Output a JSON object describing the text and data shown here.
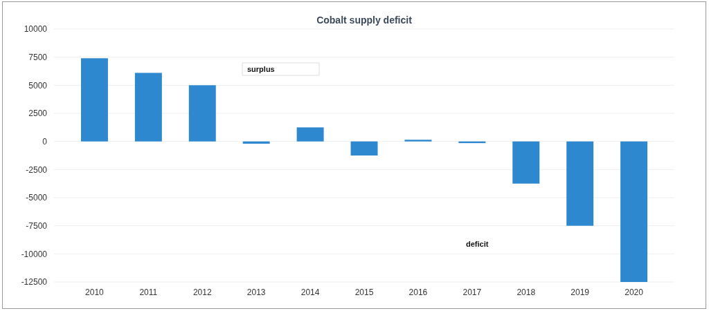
{
  "chart_data": {
    "type": "bar",
    "title": "Cobalt supply deficit",
    "categories": [
      "2010",
      "2011",
      "2012",
      "2013",
      "2014",
      "2015",
      "2016",
      "2017",
      "2018",
      "2019",
      "2020"
    ],
    "values": [
      7400,
      6100,
      5000,
      -200,
      1250,
      -1250,
      150,
      -150,
      -3750,
      -7500,
      -12500
    ],
    "color": "#2e88d0",
    "ylim": [
      -12500,
      10000
    ],
    "yticks": [
      -12500,
      -10000,
      -7500,
      -5000,
      -2500,
      0,
      2500,
      5000,
      7500,
      10000
    ],
    "grid": "y",
    "annotations": [
      "surplus",
      "deficit"
    ]
  }
}
